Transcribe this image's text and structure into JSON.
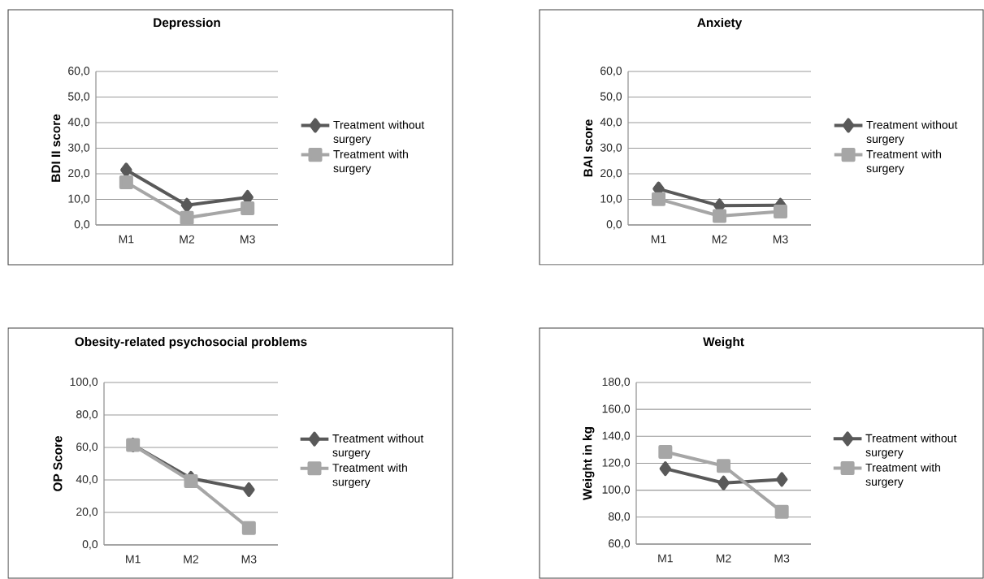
{
  "chart_data": [
    {
      "type": "line",
      "title": "Depression",
      "ylabel": "BDI II score",
      "categories": [
        "M1",
        "M2",
        "M3"
      ],
      "ylim": [
        0,
        60
      ],
      "yticks": [
        {
          "value": 0,
          "label": "0,0"
        },
        {
          "value": 10,
          "label": "10,0"
        },
        {
          "value": 20,
          "label": "20,0"
        },
        {
          "value": 30,
          "label": "30,0"
        },
        {
          "value": 40,
          "label": "40,0"
        },
        {
          "value": 50,
          "label": "50,0"
        },
        {
          "value": 60,
          "label": "60,0"
        }
      ],
      "grid": "y",
      "legend": "right",
      "series": [
        {
          "name": "Treatment without surgery",
          "color": "#595959",
          "marker": "diamond",
          "values": [
            21.5,
            7.7,
            10.8
          ]
        },
        {
          "name": "Treatment with surgery",
          "color": "#a6a6a6",
          "marker": "square",
          "values": [
            16.7,
            2.8,
            6.5
          ]
        }
      ]
    },
    {
      "type": "line",
      "title": "Anxiety",
      "ylabel": "BAI score",
      "categories": [
        "M1",
        "M2",
        "M3"
      ],
      "ylim": [
        0,
        60
      ],
      "yticks": [
        {
          "value": 0,
          "label": "0,0"
        },
        {
          "value": 10,
          "label": "10,0"
        },
        {
          "value": 20,
          "label": "20,0"
        },
        {
          "value": 30,
          "label": "30,0"
        },
        {
          "value": 40,
          "label": "40,0"
        },
        {
          "value": 50,
          "label": "50,0"
        },
        {
          "value": 60,
          "label": "60,0"
        }
      ],
      "grid": "y",
      "legend": "right",
      "series": [
        {
          "name": "Treatment without surgery",
          "color": "#595959",
          "marker": "diamond",
          "values": [
            14.1,
            7.5,
            7.7
          ]
        },
        {
          "name": "Treatment with surgery",
          "color": "#a6a6a6",
          "marker": "square",
          "values": [
            10.1,
            3.5,
            5.2
          ]
        }
      ]
    },
    {
      "type": "line",
      "title": "Obesity-related psychosocial problems",
      "ylabel": "OP Score",
      "categories": [
        "M1",
        "M2",
        "M3"
      ],
      "ylim": [
        0,
        100
      ],
      "yticks": [
        {
          "value": 0,
          "label": "0,0"
        },
        {
          "value": 20,
          "label": "20,0"
        },
        {
          "value": 40,
          "label": "40,0"
        },
        {
          "value": 60,
          "label": "60,0"
        },
        {
          "value": 80,
          "label": "80,0"
        },
        {
          "value": 100,
          "label": "100,0"
        }
      ],
      "grid": "y",
      "legend": "right",
      "series": [
        {
          "name": "Treatment without surgery",
          "color": "#595959",
          "marker": "diamond",
          "values": [
            61.5,
            41,
            34
          ]
        },
        {
          "name": "Treatment with surgery",
          "color": "#a6a6a6",
          "marker": "square",
          "values": [
            61.5,
            39.3,
            10.4
          ]
        }
      ]
    },
    {
      "type": "line",
      "title": "Weight",
      "ylabel": "Weight in kg",
      "categories": [
        "M1",
        "M2",
        "M3"
      ],
      "ylim": [
        60,
        180
      ],
      "yticks": [
        {
          "value": 60,
          "label": "60,0"
        },
        {
          "value": 80,
          "label": "80,0"
        },
        {
          "value": 100,
          "label": "100,0"
        },
        {
          "value": 120,
          "label": "120,0"
        },
        {
          "value": 140,
          "label": "140,0"
        },
        {
          "value": 160,
          "label": "160,0"
        },
        {
          "value": 180,
          "label": "180,0"
        }
      ],
      "grid": "y",
      "legend": "right",
      "series": [
        {
          "name": "Treatment without surgery",
          "color": "#595959",
          "marker": "diamond",
          "values": [
            116,
            105.4,
            108
          ]
        },
        {
          "name": "Treatment with surgery",
          "color": "#a6a6a6",
          "marker": "square",
          "values": [
            128.4,
            118,
            84
          ]
        }
      ]
    }
  ]
}
